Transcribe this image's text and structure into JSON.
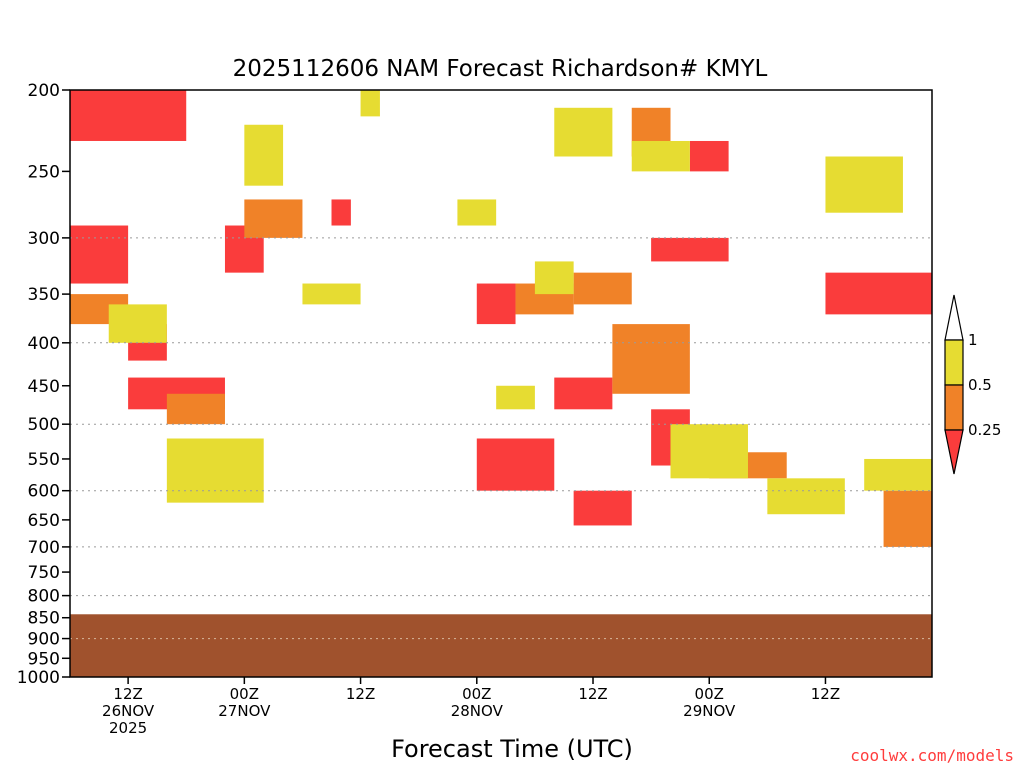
{
  "chart_data": {
    "type": "heatmap",
    "title": "2025112606 NAM Forecast Richardson# KMYL",
    "xlabel": "Forecast Time (UTC)",
    "ylabel": "",
    "y_axis": {
      "quantity": "pressure (hPa)",
      "scale": "log",
      "inverted": true,
      "range": [
        1000,
        200
      ],
      "ticks": [
        200,
        250,
        300,
        350,
        400,
        450,
        500,
        550,
        600,
        650,
        700,
        750,
        800,
        850,
        900,
        950,
        1000
      ],
      "gridlines": [
        300,
        400,
        500,
        600,
        700,
        800,
        900,
        1000
      ]
    },
    "x_axis": {
      "start_time": "2025-11-26 06Z",
      "end_time": "2025-11-29 23Z",
      "tick_labels": [
        {
          "time": "2025-11-26 12Z",
          "lines": [
            "12Z",
            "26NOV",
            "2025"
          ]
        },
        {
          "time": "2025-11-27 00Z",
          "lines": [
            "00Z",
            "27NOV"
          ]
        },
        {
          "time": "2025-11-27 12Z",
          "lines": [
            "12Z"
          ]
        },
        {
          "time": "2025-11-28 00Z",
          "lines": [
            "00Z",
            "28NOV"
          ]
        },
        {
          "time": "2025-11-28 12Z",
          "lines": [
            "12Z"
          ]
        },
        {
          "time": "2025-11-29 00Z",
          "lines": [
            "00Z",
            "29NOV"
          ]
        },
        {
          "time": "2025-11-29 12Z",
          "lines": [
            "12Z"
          ]
        }
      ]
    },
    "colorbar": {
      "labels": [
        "1",
        "0.5",
        "0.25"
      ],
      "bins": [
        {
          "range": "> 1",
          "color": "#ffffff"
        },
        {
          "range": "0.5 - 1",
          "color": "#e6dc32"
        },
        {
          "range": "0.25 - 0.5",
          "color": "#f08228"
        },
        {
          "range": "< 0.25",
          "color": "#fa3c3c"
        }
      ]
    },
    "colors": {
      "ri_lt_025": "#fa3c3c",
      "ri_025_05": "#f08228",
      "ri_05_1": "#e6dc32",
      "below_ground": "#a0522d"
    },
    "surface_pressure_hpa": 842,
    "regions": [
      {
        "class": "low",
        "t0": "2025-11-26 06Z",
        "t1": "2025-11-26 18Z",
        "p0": 200,
        "p1": 230
      },
      {
        "class": "low",
        "t0": "2025-11-26 06Z",
        "t1": "2025-11-26 12Z",
        "p0": 290,
        "p1": 340
      },
      {
        "class": "low",
        "t0": "2025-11-26 12Z",
        "t1": "2025-11-26 16Z",
        "p0": 380,
        "p1": 420
      },
      {
        "class": "low",
        "t0": "2025-11-26 12Z",
        "t1": "2025-11-26 22Z",
        "p0": 440,
        "p1": 480
      },
      {
        "class": "low",
        "t0": "2025-11-26 22Z",
        "t1": "2025-11-27 02Z",
        "p0": 290,
        "p1": 330
      },
      {
        "class": "low",
        "t0": "2025-11-27 09Z",
        "t1": "2025-11-27 11Z",
        "p0": 270,
        "p1": 290
      },
      {
        "class": "low",
        "t0": "2025-11-28 00Z",
        "t1": "2025-11-28 04Z",
        "p0": 340,
        "p1": 380
      },
      {
        "class": "low",
        "t0": "2025-11-28 00Z",
        "t1": "2025-11-28 08Z",
        "p0": 520,
        "p1": 600
      },
      {
        "class": "low",
        "t0": "2025-11-28 08Z",
        "t1": "2025-11-28 14Z",
        "p0": 440,
        "p1": 480
      },
      {
        "class": "low",
        "t0": "2025-11-28 10Z",
        "t1": "2025-11-28 16Z",
        "p0": 600,
        "p1": 660
      },
      {
        "class": "low",
        "t0": "2025-11-28 18Z",
        "t1": "2025-11-28 22Z",
        "p0": 480,
        "p1": 560
      },
      {
        "class": "low",
        "t0": "2025-11-28 22Z",
        "t1": "2025-11-29 02Z",
        "p0": 230,
        "p1": 250
      },
      {
        "class": "low",
        "t0": "2025-11-28 18Z",
        "t1": "2025-11-29 02Z",
        "p0": 300,
        "p1": 320
      },
      {
        "class": "low",
        "t0": "2025-11-29 12Z",
        "t1": "2025-11-29 23Z",
        "p0": 330,
        "p1": 370
      },
      {
        "class": "mid",
        "t0": "2025-11-26 06Z",
        "t1": "2025-11-26 12Z",
        "p0": 350,
        "p1": 380
      },
      {
        "class": "mid",
        "t0": "2025-11-26 16Z",
        "t1": "2025-11-26 22Z",
        "p0": 460,
        "p1": 500
      },
      {
        "class": "mid",
        "t0": "2025-11-27 00Z",
        "t1": "2025-11-27 06Z",
        "p0": 270,
        "p1": 300
      },
      {
        "class": "mid",
        "t0": "2025-11-28 04Z",
        "t1": "2025-11-28 10Z",
        "p0": 340,
        "p1": 370
      },
      {
        "class": "mid",
        "t0": "2025-11-28 10Z",
        "t1": "2025-11-28 16Z",
        "p0": 330,
        "p1": 360
      },
      {
        "class": "mid",
        "t0": "2025-11-28 14Z",
        "t1": "2025-11-28 22Z",
        "p0": 380,
        "p1": 460
      },
      {
        "class": "mid",
        "t0": "2025-11-28 16Z",
        "t1": "2025-11-28 20Z",
        "p0": 210,
        "p1": 240
      },
      {
        "class": "mid",
        "t0": "2025-11-29 00Z",
        "t1": "2025-11-29 08Z",
        "p0": 540,
        "p1": 580
      },
      {
        "class": "mid",
        "t0": "2025-11-29 18Z",
        "t1": "2025-11-29 23Z",
        "p0": 600,
        "p1": 700
      },
      {
        "class": "high",
        "t0": "2025-11-26 10Z",
        "t1": "2025-11-26 16Z",
        "p0": 360,
        "p1": 400
      },
      {
        "class": "high",
        "t0": "2025-11-26 16Z",
        "t1": "2025-11-27 02Z",
        "p0": 520,
        "p1": 620
      },
      {
        "class": "high",
        "t0": "2025-11-27 00Z",
        "t1": "2025-11-27 04Z",
        "p0": 220,
        "p1": 260
      },
      {
        "class": "high",
        "t0": "2025-11-27 06Z",
        "t1": "2025-11-27 12Z",
        "p0": 340,
        "p1": 360
      },
      {
        "class": "high",
        "t0": "2025-11-27 12Z",
        "t1": "2025-11-27 14Z",
        "p0": 200,
        "p1": 215
      },
      {
        "class": "high",
        "t0": "2025-11-27 22Z",
        "t1": "2025-11-28 02Z",
        "p0": 270,
        "p1": 290
      },
      {
        "class": "high",
        "t0": "2025-11-28 02Z",
        "t1": "2025-11-28 06Z",
        "p0": 450,
        "p1": 480
      },
      {
        "class": "high",
        "t0": "2025-11-28 06Z",
        "t1": "2025-11-28 10Z",
        "p0": 320,
        "p1": 350
      },
      {
        "class": "high",
        "t0": "2025-11-28 08Z",
        "t1": "2025-11-28 14Z",
        "p0": 210,
        "p1": 240
      },
      {
        "class": "high",
        "t0": "2025-11-28 16Z",
        "t1": "2025-11-28 22Z",
        "p0": 230,
        "p1": 250
      },
      {
        "class": "high",
        "t0": "2025-11-28 20Z",
        "t1": "2025-11-29 04Z",
        "p0": 500,
        "p1": 580
      },
      {
        "class": "high",
        "t0": "2025-11-29 06Z",
        "t1": "2025-11-29 14Z",
        "p0": 580,
        "p1": 640
      },
      {
        "class": "high",
        "t0": "2025-11-29 12Z",
        "t1": "2025-11-29 20Z",
        "p0": 240,
        "p1": 280
      },
      {
        "class": "high",
        "t0": "2025-11-29 16Z",
        "t1": "2025-11-29 23Z",
        "p0": 550,
        "p1": 600
      }
    ]
  },
  "credit": "coolwx.com/models"
}
